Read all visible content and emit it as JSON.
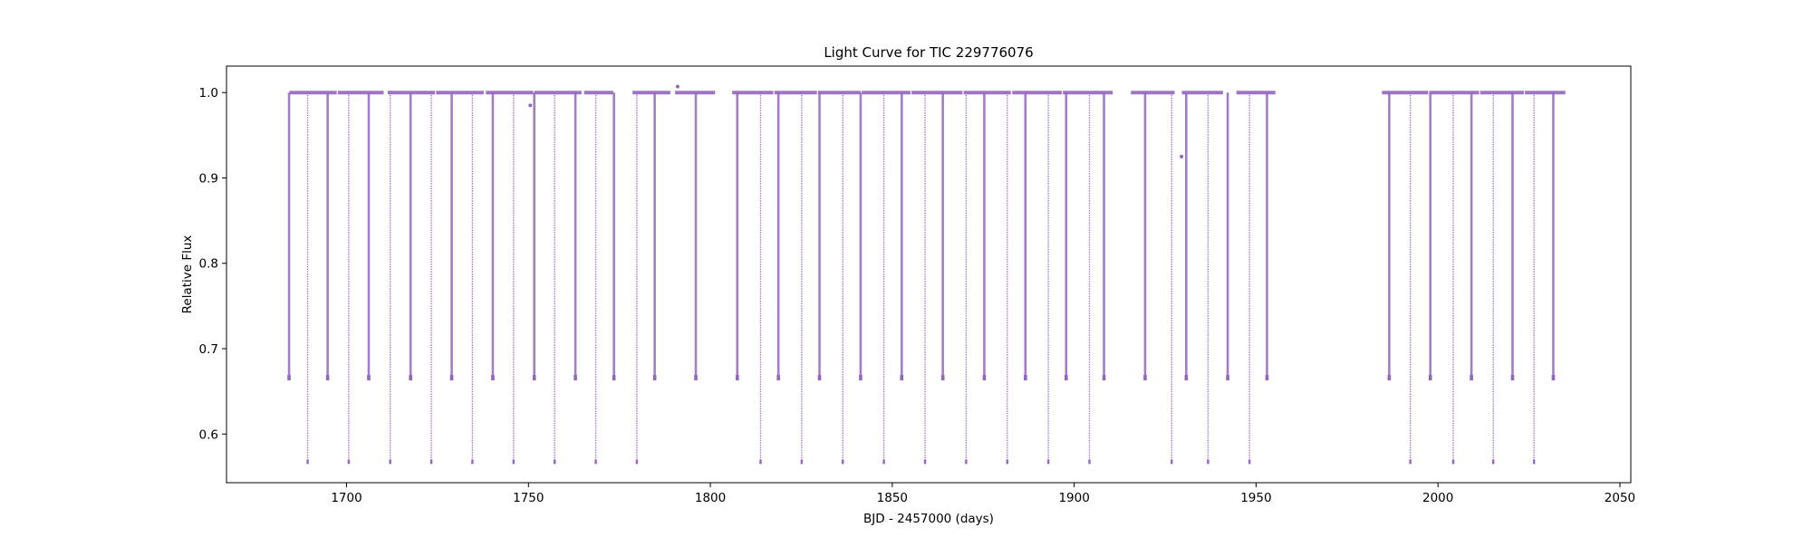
{
  "chart_data": {
    "type": "scatter",
    "title": "Light Curve for TIC 229776076",
    "xlabel": "BJD - 2457000 (days)",
    "ylabel": "Relative Flux",
    "xlim": [
      1667,
      2053
    ],
    "ylim": [
      0.543,
      1.031
    ],
    "xticks": [
      1700,
      1750,
      1800,
      1850,
      1900,
      1950,
      2000,
      2050
    ],
    "yticks": [
      0.6,
      0.7,
      0.8,
      0.9,
      1.0
    ],
    "grid": false,
    "legend": "none",
    "colors": {
      "points": "#9467bd",
      "axes": "#000000"
    },
    "baseline_flux": 1.0,
    "data_segments": [
      [
        1684.3,
        1697.3
      ],
      [
        1697.6,
        1710.2
      ],
      [
        1711.3,
        1724.3
      ],
      [
        1724.6,
        1737.7
      ],
      [
        1738.3,
        1751.3
      ],
      [
        1751.6,
        1764.6
      ],
      [
        1765.3,
        1773.3
      ],
      [
        1778.6,
        1789.0
      ],
      [
        1790.3,
        1801.3
      ],
      [
        1806.0,
        1817.3
      ],
      [
        1817.6,
        1829.3
      ],
      [
        1829.6,
        1841.3
      ],
      [
        1841.6,
        1855.0
      ],
      [
        1855.3,
        1869.3
      ],
      [
        1869.6,
        1882.6
      ],
      [
        1883.0,
        1896.6
      ],
      [
        1896.9,
        1910.6
      ],
      [
        1915.6,
        1927.6
      ],
      [
        1929.6,
        1940.9
      ],
      [
        1944.6,
        1955.3
      ],
      [
        1984.6,
        1997.3
      ],
      [
        1997.6,
        2011.3
      ],
      [
        2011.6,
        2023.6
      ],
      [
        2023.9,
        2035.0
      ]
    ],
    "primary_eclipses": {
      "depth_flux": 0.665,
      "times": [
        1684.2,
        1694.8,
        1706.1,
        1717.6,
        1728.9,
        1740.2,
        1751.6,
        1762.9,
        1773.5,
        1784.7,
        1796.0,
        1807.4,
        1818.7,
        1830.0,
        1841.3,
        1852.6,
        1863.9,
        1875.3,
        1886.6,
        1897.8,
        1908.2,
        1919.5,
        1930.8,
        1942.2,
        1953.0,
        1986.6,
        1997.9,
        2009.2,
        2020.5,
        2031.7
      ]
    },
    "secondary_eclipses": {
      "depth_flux": 0.567,
      "times": [
        1689.3,
        1700.6,
        1712.0,
        1723.3,
        1734.6,
        1745.9,
        1757.2,
        1768.5,
        1779.8,
        1791.1,
        1802.5,
        1813.8,
        1825.1,
        1836.4,
        1847.7,
        1859.0,
        1870.3,
        1881.6,
        1892.9,
        1904.2,
        1915.5,
        1926.8,
        1938.1,
        1949.4,
        1988.8,
        2001.1,
        2013.4,
        2025.7
      ]
    },
    "visible_secondary_eclipses": [
      1689.3,
      1700.6,
      1712.0,
      1723.3,
      1734.6,
      1745.9,
      1757.2,
      1768.5,
      1779.8,
      1813.8,
      1825.1,
      1836.4,
      1847.7,
      1859.0,
      1870.3,
      1881.6,
      1892.9,
      1904.2,
      1926.8,
      1936.8,
      1948.2,
      1992.4,
      2004.2,
      2015.2,
      2026.4
    ],
    "notable_points": [
      {
        "x": 1791.0,
        "y": 1.007
      },
      {
        "x": 1750.5,
        "y": 0.985
      },
      {
        "x": 1929.5,
        "y": 0.925
      }
    ]
  }
}
